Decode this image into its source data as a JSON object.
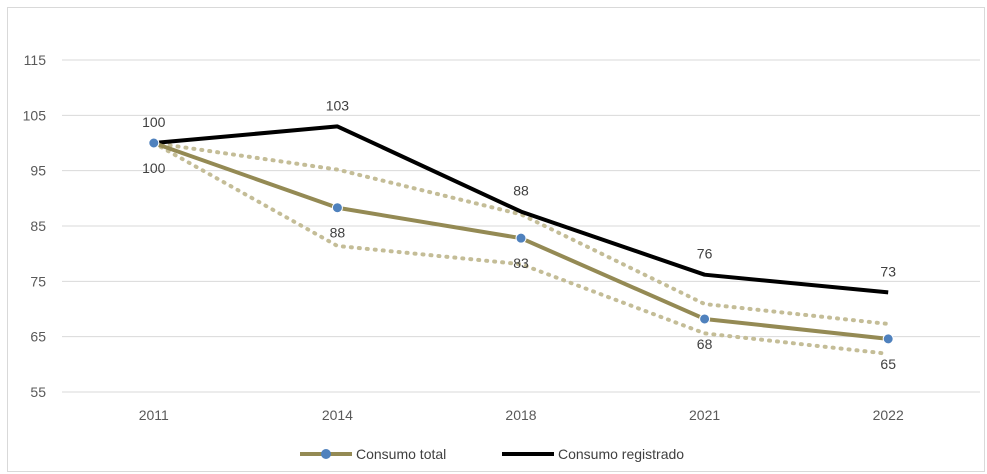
{
  "chart_data": {
    "type": "line",
    "categories": [
      "2011",
      "2014",
      "2018",
      "2021",
      "2022"
    ],
    "ylim": [
      55,
      115
    ],
    "yticks": [
      55,
      65,
      75,
      85,
      95,
      105,
      115
    ],
    "grid": true,
    "legend_position": "bottom",
    "series": [
      {
        "name": "Consumo total",
        "values": [
          100,
          88.3,
          82.8,
          68.2,
          64.6
        ],
        "labels": [
          "100",
          "88",
          "83",
          "68",
          "65"
        ],
        "color": "#948a54",
        "marker_color": "#4f81bd",
        "label_position": "below"
      },
      {
        "name": "Consumo registrado",
        "values": [
          100,
          103,
          87.6,
          76.2,
          73
        ],
        "labels": [
          "100",
          "103",
          "88",
          "76",
          "73"
        ],
        "color": "#000000",
        "label_position": "above"
      }
    ],
    "band": {
      "upper": [
        100,
        95.2,
        87.1,
        70.9,
        67.3
      ],
      "lower": [
        100,
        81.4,
        78.1,
        65.6,
        61.9
      ],
      "color": "#c4bd97"
    }
  }
}
